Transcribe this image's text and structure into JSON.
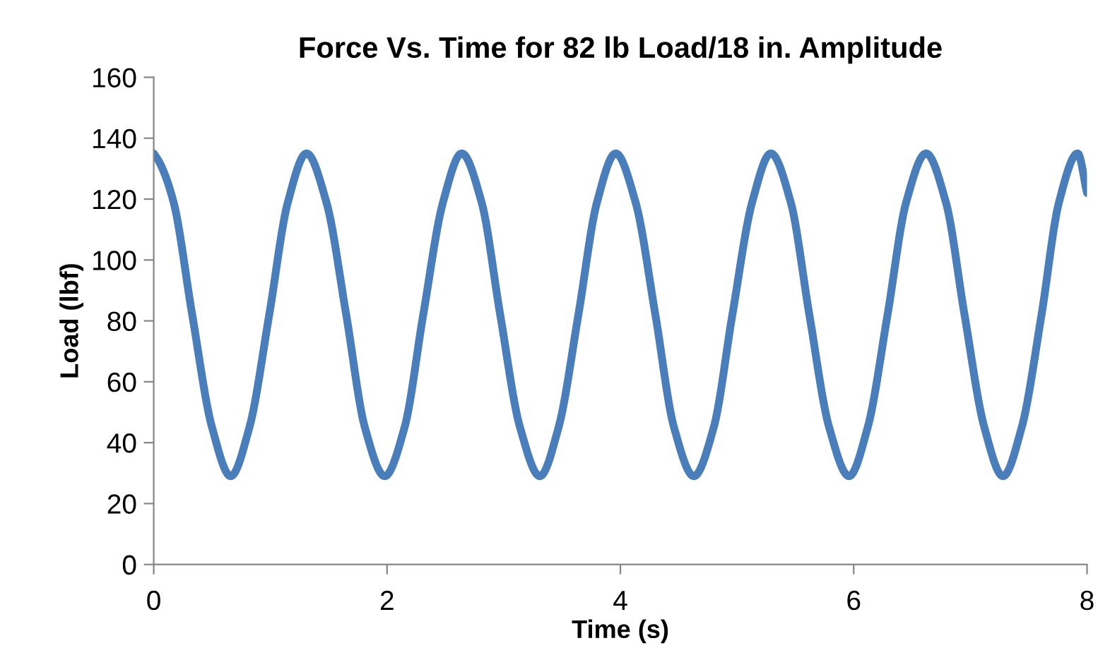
{
  "chart_data": {
    "type": "line",
    "title": "Force Vs. Time for 82 lb Load/18 in. Amplitude",
    "xlabel": "Time (s)",
    "ylabel": "Load (lbf)",
    "xlim": [
      0,
      8
    ],
    "xticks": [
      0,
      2,
      4,
      6,
      8
    ],
    "ylim": [
      0,
      160
    ],
    "yticks": [
      0,
      20,
      40,
      60,
      80,
      100,
      120,
      140,
      160
    ],
    "grid": false,
    "legend": false,
    "marker": "none",
    "line_style": "solid",
    "series": [
      {
        "color": "#4a7ebb",
        "x": [
          0,
          0.05,
          0.17,
          0.33,
          0.5,
          0.66,
          0.82,
          0.99,
          1.15,
          1.31,
          1.48,
          1.65,
          1.81,
          1.98,
          2.15,
          2.31,
          2.48,
          2.64,
          2.81,
          2.97,
          3.14,
          3.31,
          3.47,
          3.64,
          3.8,
          3.96,
          4.13,
          4.3,
          4.46,
          4.63,
          4.8,
          4.96,
          5.13,
          5.29,
          5.46,
          5.62,
          5.79,
          5.96,
          6.12,
          6.29,
          6.45,
          6.62,
          6.79,
          6.95,
          7.12,
          7.28,
          7.44,
          7.61,
          7.76,
          7.92,
          8.0
        ],
        "values": [
          135,
          132,
          119,
          82,
          45,
          29,
          45,
          82,
          119,
          135,
          119,
          82,
          45,
          29,
          45,
          82,
          119,
          135,
          119,
          82,
          45,
          29,
          45,
          82,
          119,
          135,
          119,
          82,
          45,
          29,
          45,
          82,
          119,
          135,
          119,
          82,
          45,
          29,
          45,
          82,
          119,
          135,
          119,
          82,
          45,
          29,
          45,
          82,
          119,
          135,
          122
        ]
      }
    ]
  }
}
